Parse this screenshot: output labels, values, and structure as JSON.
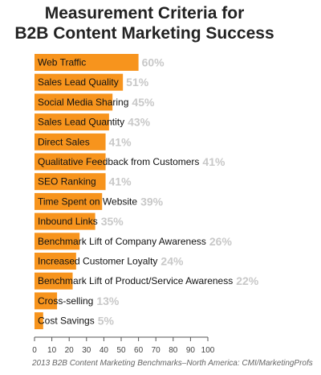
{
  "title_lines": [
    "Measurement Criteria for",
    "B2B Content Marketing Success"
  ],
  "source": "2013 B2B Content Marketing Benchmarks–North America: CMI/MarketingProfs",
  "colors": {
    "bar": "#f7941d",
    "value_label": "#c8c8c8",
    "axis": "#555555"
  },
  "chart_data": {
    "type": "bar",
    "orientation": "horizontal",
    "categories": [
      "Web Traffic",
      "Sales Lead Quality",
      "Social Media Sharing",
      "Sales Lead Quantity",
      "Direct Sales",
      "Qualitative Feedback from Customers",
      "SEO Ranking",
      "Time Spent on Website",
      "Inbound Links",
      "Benchmark Lift of Company Awareness",
      "Increased Customer Loyalty",
      "Benchmark Lift of Product/Service Awareness",
      "Cross-selling",
      "Cost Savings"
    ],
    "values": [
      60,
      51,
      45,
      43,
      41,
      41,
      41,
      39,
      35,
      26,
      24,
      22,
      13,
      5
    ],
    "value_labels": [
      "60%",
      "51%",
      "45%",
      "43%",
      "41%",
      "41%",
      "41%",
      "39%",
      "35%",
      "26%",
      "24%",
      "22%",
      "13%",
      "5%"
    ],
    "title": "Measurement Criteria for B2B Content Marketing Success",
    "xlim": [
      0,
      100
    ],
    "xticks": [
      "0",
      "10",
      "20",
      "30",
      "40",
      "50",
      "60",
      "70",
      "80",
      "90",
      "100"
    ],
    "grid": false,
    "legend": "none"
  }
}
